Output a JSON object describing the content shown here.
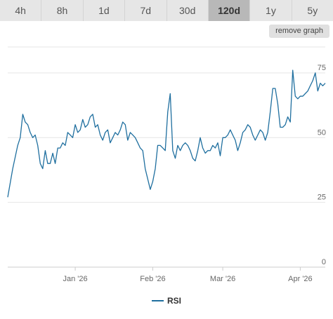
{
  "tabs": [
    {
      "label": "4h",
      "active": false
    },
    {
      "label": "8h",
      "active": false
    },
    {
      "label": "1d",
      "active": false
    },
    {
      "label": "7d",
      "active": false
    },
    {
      "label": "30d",
      "active": false
    },
    {
      "label": "120d",
      "active": true
    },
    {
      "label": "1y",
      "active": false
    },
    {
      "label": "5y",
      "active": false
    }
  ],
  "remove_graph_label": "remove graph",
  "colors": {
    "series": "#1f6f9f",
    "grid": "#e6e6e6",
    "axis": "#cccccc"
  },
  "chart_data": {
    "type": "line",
    "title": "",
    "xlabel": "",
    "ylabel": "",
    "ylim": [
      0,
      75
    ],
    "yticks": [
      0,
      25,
      50,
      75
    ],
    "x_range": [
      "2025-12-05",
      "2026-04-11"
    ],
    "xticks": [
      {
        "date": "2026-01-01",
        "label": "Jan '26"
      },
      {
        "date": "2026-02-01",
        "label": "Feb '26"
      },
      {
        "date": "2026-03-01",
        "label": "Mar '26"
      },
      {
        "date": "2026-04-01",
        "label": "Apr '26"
      }
    ],
    "legend_position": "bottom-center",
    "grid": true,
    "series": [
      {
        "name": "RSI",
        "points": [
          [
            "2025-12-05",
            27
          ],
          [
            "2025-12-07",
            38
          ],
          [
            "2025-12-09",
            47
          ],
          [
            "2025-12-10",
            50
          ],
          [
            "2025-12-11",
            59
          ],
          [
            "2025-12-12",
            56
          ],
          [
            "2025-12-13",
            55
          ],
          [
            "2025-12-14",
            52
          ],
          [
            "2025-12-15",
            50
          ],
          [
            "2025-12-16",
            51
          ],
          [
            "2025-12-17",
            47
          ],
          [
            "2025-12-18",
            40
          ],
          [
            "2025-12-19",
            38
          ],
          [
            "2025-12-20",
            45
          ],
          [
            "2025-12-21",
            40
          ],
          [
            "2025-12-22",
            40
          ],
          [
            "2025-12-23",
            44
          ],
          [
            "2025-12-24",
            40
          ],
          [
            "2025-12-25",
            46
          ],
          [
            "2025-12-26",
            46
          ],
          [
            "2025-12-27",
            48
          ],
          [
            "2025-12-28",
            47
          ],
          [
            "2025-12-29",
            52
          ],
          [
            "2025-12-30",
            51
          ],
          [
            "2025-12-31",
            50
          ],
          [
            "2026-01-01",
            55
          ],
          [
            "2026-01-02",
            52
          ],
          [
            "2026-01-03",
            53
          ],
          [
            "2026-01-04",
            57
          ],
          [
            "2026-01-05",
            54
          ],
          [
            "2026-01-06",
            55
          ],
          [
            "2026-01-07",
            58
          ],
          [
            "2026-01-08",
            59
          ],
          [
            "2026-01-09",
            54
          ],
          [
            "2026-01-10",
            55
          ],
          [
            "2026-01-11",
            51
          ],
          [
            "2026-01-12",
            49
          ],
          [
            "2026-01-13",
            52
          ],
          [
            "2026-01-14",
            53
          ],
          [
            "2026-01-15",
            48
          ],
          [
            "2026-01-16",
            50
          ],
          [
            "2026-01-17",
            52
          ],
          [
            "2026-01-18",
            51
          ],
          [
            "2026-01-19",
            53
          ],
          [
            "2026-01-20",
            56
          ],
          [
            "2026-01-21",
            55
          ],
          [
            "2026-01-22",
            49
          ],
          [
            "2026-01-23",
            52
          ],
          [
            "2026-01-24",
            51
          ],
          [
            "2026-01-25",
            50
          ],
          [
            "2026-01-26",
            48
          ],
          [
            "2026-01-27",
            46
          ],
          [
            "2026-01-28",
            45
          ],
          [
            "2026-01-29",
            38
          ],
          [
            "2026-01-30",
            34
          ],
          [
            "2026-01-31",
            30
          ],
          [
            "2026-02-01",
            33
          ],
          [
            "2026-02-02",
            38
          ],
          [
            "2026-02-03",
            47
          ],
          [
            "2026-02-04",
            47
          ],
          [
            "2026-02-05",
            46
          ],
          [
            "2026-02-06",
            45
          ],
          [
            "2026-02-07",
            60
          ],
          [
            "2026-02-08",
            67
          ],
          [
            "2026-02-09",
            45
          ],
          [
            "2026-02-10",
            42
          ],
          [
            "2026-02-11",
            47
          ],
          [
            "2026-02-12",
            45
          ],
          [
            "2026-02-13",
            47
          ],
          [
            "2026-02-14",
            48
          ],
          [
            "2026-02-15",
            47
          ],
          [
            "2026-02-16",
            45
          ],
          [
            "2026-02-17",
            42
          ],
          [
            "2026-02-18",
            41
          ],
          [
            "2026-02-19",
            45
          ],
          [
            "2026-02-20",
            50
          ],
          [
            "2026-02-21",
            46
          ],
          [
            "2026-02-22",
            44
          ],
          [
            "2026-02-23",
            45
          ],
          [
            "2026-02-24",
            45
          ],
          [
            "2026-02-25",
            47
          ],
          [
            "2026-02-26",
            46
          ],
          [
            "2026-02-27",
            48
          ],
          [
            "2026-02-28",
            43
          ],
          [
            "2026-03-01",
            50
          ],
          [
            "2026-03-02",
            50
          ],
          [
            "2026-03-03",
            51
          ],
          [
            "2026-03-04",
            53
          ],
          [
            "2026-03-05",
            51
          ],
          [
            "2026-03-06",
            49
          ],
          [
            "2026-03-07",
            45
          ],
          [
            "2026-03-08",
            48
          ],
          [
            "2026-03-09",
            52
          ],
          [
            "2026-03-10",
            53
          ],
          [
            "2026-03-11",
            55
          ],
          [
            "2026-03-12",
            54
          ],
          [
            "2026-03-13",
            51
          ],
          [
            "2026-03-14",
            49
          ],
          [
            "2026-03-15",
            51
          ],
          [
            "2026-03-16",
            53
          ],
          [
            "2026-03-17",
            52
          ],
          [
            "2026-03-18",
            49
          ],
          [
            "2026-03-19",
            52
          ],
          [
            "2026-03-20",
            60
          ],
          [
            "2026-03-21",
            69
          ],
          [
            "2026-03-22",
            69
          ],
          [
            "2026-03-23",
            63
          ],
          [
            "2026-03-24",
            54
          ],
          [
            "2026-03-25",
            54
          ],
          [
            "2026-03-26",
            55
          ],
          [
            "2026-03-27",
            58
          ],
          [
            "2026-03-28",
            56
          ],
          [
            "2026-03-29",
            76
          ],
          [
            "2026-03-30",
            66
          ],
          [
            "2026-03-31",
            65
          ],
          [
            "2026-04-01",
            66
          ],
          [
            "2026-04-02",
            66
          ],
          [
            "2026-04-03",
            67
          ],
          [
            "2026-04-04",
            68
          ],
          [
            "2026-04-05",
            70
          ],
          [
            "2026-04-06",
            72
          ],
          [
            "2026-04-07",
            75
          ],
          [
            "2026-04-08",
            68
          ],
          [
            "2026-04-09",
            71
          ],
          [
            "2026-04-10",
            70
          ],
          [
            "2026-04-11",
            71
          ]
        ]
      }
    ]
  }
}
